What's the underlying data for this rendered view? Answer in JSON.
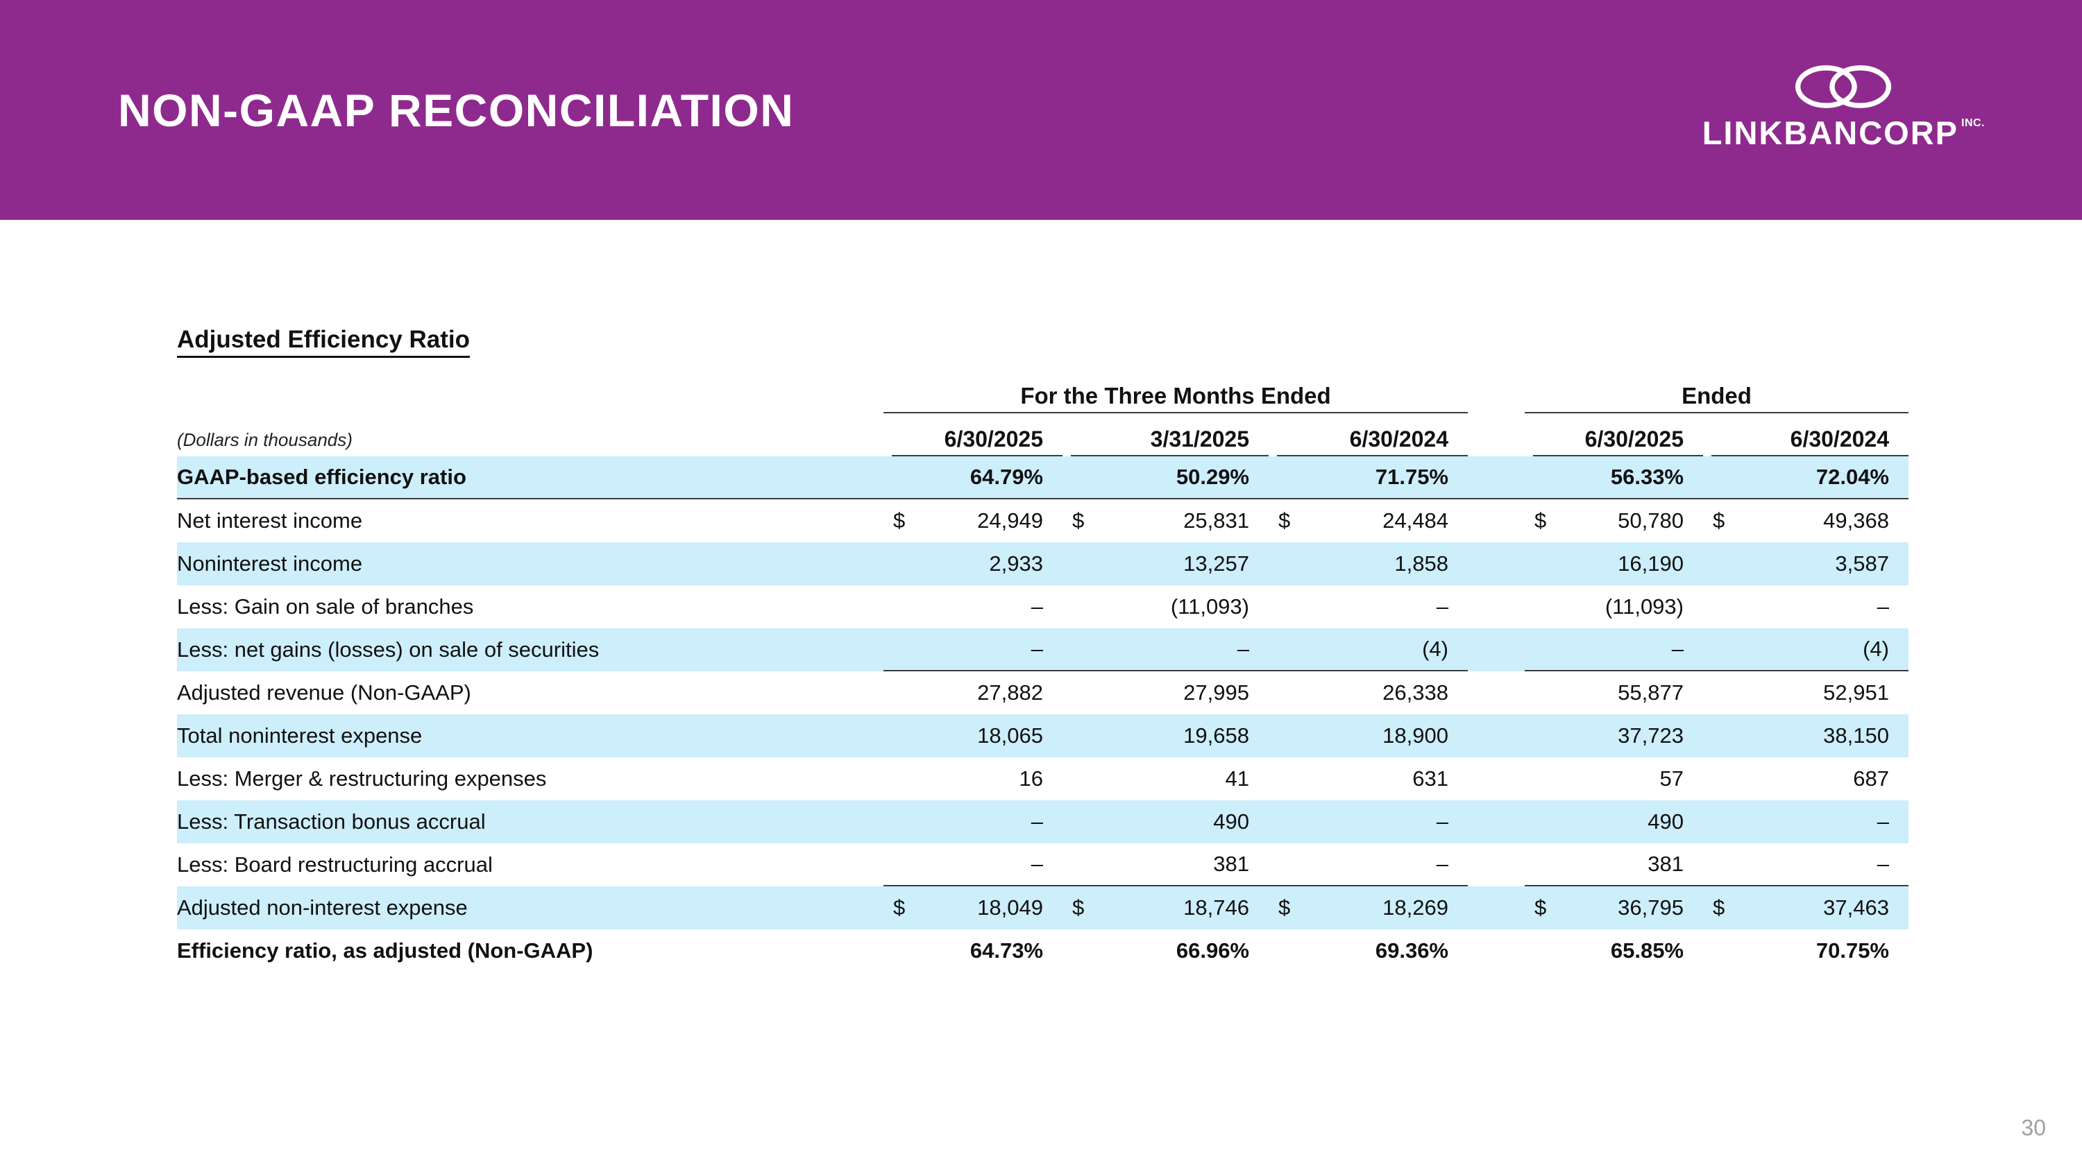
{
  "slide": {
    "title": "NON-GAAP RECONCILIATION",
    "page_number": "30",
    "logo": {
      "name": "LINKBANCORP",
      "suffix": "INC."
    }
  },
  "colors": {
    "header_purple": "#8E2A8D",
    "row_shade": "#CDEEFB"
  },
  "table": {
    "section_title": "Adjusted Efficiency Ratio",
    "units_note": "(Dollars in thousands)",
    "dollar_sign": "$",
    "group_headers": [
      {
        "label": "For the Three Months Ended",
        "span": 3
      },
      {
        "label": "Ended",
        "span": 2
      }
    ],
    "column_headers": [
      "6/30/2025",
      "3/31/2025",
      "6/30/2024",
      "6/30/2025",
      "6/30/2024"
    ],
    "rows": [
      {
        "label": "GAAP-based efficiency ratio",
        "values": [
          "64.79%",
          "50.29%",
          "71.75%",
          "56.33%",
          "72.04%"
        ],
        "bold": true,
        "shaded": true,
        "rule_below": "full"
      },
      {
        "label": "Net interest income",
        "values": [
          "24,949",
          "25,831",
          "24,484",
          "50,780",
          "49,368"
        ],
        "dollar": true
      },
      {
        "label": "Noninterest income",
        "values": [
          "2,933",
          "13,257",
          "1,858",
          "16,190",
          "3,587"
        ],
        "shaded": true
      },
      {
        "label": "Less: Gain on sale of branches",
        "values": [
          "–",
          "(11,093)",
          "–",
          "(11,093)",
          "–"
        ]
      },
      {
        "label": "Less: net gains (losses) on sale of securities",
        "values": [
          "–",
          "–",
          "(4)",
          "–",
          "(4)"
        ],
        "shaded": true,
        "rule_below": "numeric"
      },
      {
        "label": "Adjusted revenue (Non-GAAP)",
        "values": [
          "27,882",
          "27,995",
          "26,338",
          "55,877",
          "52,951"
        ]
      },
      {
        "label": "Total noninterest expense",
        "values": [
          "18,065",
          "19,658",
          "18,900",
          "37,723",
          "38,150"
        ],
        "shaded": true
      },
      {
        "label": "Less: Merger & restructuring expenses",
        "values": [
          "16",
          "41",
          "631",
          "57",
          "687"
        ]
      },
      {
        "label": "Less: Transaction bonus accrual",
        "values": [
          "–",
          "490",
          "–",
          "490",
          "–"
        ],
        "shaded": true
      },
      {
        "label": "Less: Board restructuring accrual",
        "values": [
          "–",
          "381",
          "–",
          "381",
          "–"
        ],
        "rule_below": "numeric"
      },
      {
        "label": "Adjusted non-interest expense",
        "values": [
          "18,049",
          "18,746",
          "18,269",
          "36,795",
          "37,463"
        ],
        "shaded": true,
        "dollar": true
      },
      {
        "label": "Efficiency ratio, as adjusted (Non-GAAP)",
        "values": [
          "64.73%",
          "66.96%",
          "69.36%",
          "65.85%",
          "70.75%"
        ],
        "bold": true
      }
    ]
  }
}
